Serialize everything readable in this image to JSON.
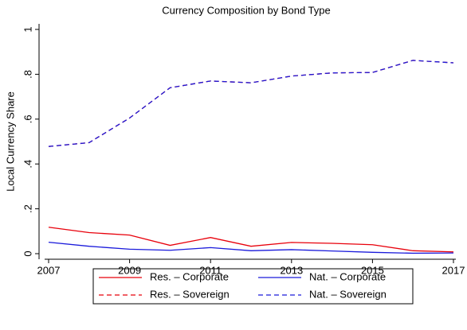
{
  "chart_data": {
    "type": "line",
    "title": "Currency Composition by Bond Type",
    "y_label": "Local Currency Share",
    "x": [
      2007,
      2008,
      2009,
      2010,
      2011,
      2012,
      2013,
      2014,
      2015,
      2016,
      2017
    ],
    "series": [
      {
        "name": "Res. – Corporate",
        "color": "#e8000b",
        "dashed": false,
        "values": [
          0.118,
          0.094,
          0.083,
          0.037,
          0.072,
          0.033,
          0.05,
          0.046,
          0.04,
          0.013,
          0.008
        ]
      },
      {
        "name": "Nat. – Corporate",
        "color": "#1a1adb",
        "dashed": false,
        "values": [
          0.051,
          0.033,
          0.02,
          0.015,
          0.027,
          0.013,
          0.018,
          0.012,
          0.006,
          0.002,
          0.003
        ]
      },
      {
        "name": "Res. – Sovereign",
        "color": "#e8000b",
        "dashed": true,
        "values": [
          0.478,
          0.495,
          0.605,
          0.74,
          0.77,
          0.762,
          0.792,
          0.806,
          0.808,
          0.862,
          0.851
        ]
      },
      {
        "name": "Nat. – Sovereign",
        "color": "#1a1adb",
        "dashed": true,
        "values": [
          0.478,
          0.495,
          0.605,
          0.74,
          0.77,
          0.762,
          0.792,
          0.806,
          0.808,
          0.862,
          0.851
        ]
      }
    ],
    "xlim": [
      2007,
      2017
    ],
    "xticks": [
      2007,
      2009,
      2011,
      2013,
      2015,
      2017
    ],
    "ylim": [
      0,
      1
    ],
    "yticks": [
      0,
      {
        "value": 0.2,
        "label": ".2"
      },
      {
        "value": 0.4,
        "label": ".4"
      },
      {
        "value": 0.6,
        "label": ".6"
      },
      {
        "value": 0.8,
        "label": ".8"
      },
      1
    ],
    "legend": "bottom"
  }
}
